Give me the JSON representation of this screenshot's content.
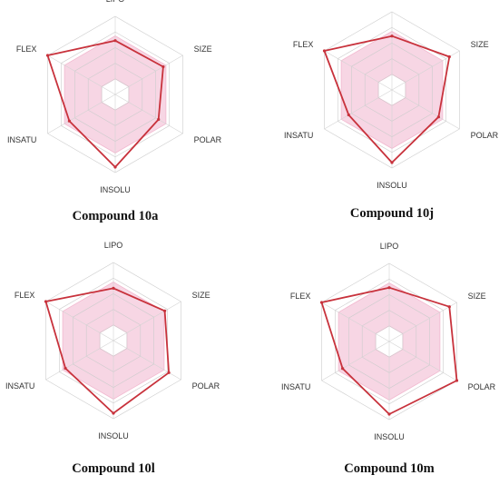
{
  "colors": {
    "data_line": "#c8323c",
    "optimal_fill": "#f7d6e4",
    "optimal_stroke": "#f2b8cf",
    "grid": "#cccccc",
    "axis": "#d4d4d4",
    "background": "#ffffff"
  },
  "chart_data": [
    {
      "type": "radar",
      "title": "Compound 10a",
      "axes": [
        "LIPO",
        "SIZE",
        "POLAR",
        "INSOLU",
        "INSATU",
        "FLEX"
      ],
      "values": [
        0.69,
        0.71,
        0.64,
        0.93,
        0.68,
        1.0
      ],
      "optimal_range": {
        "inner": 0.2,
        "outer": 0.75
      },
      "grid_rings": 5,
      "scale": [
        0,
        1
      ],
      "grid": true
    },
    {
      "type": "radar",
      "title": "Compound 10j",
      "axes": [
        "LIPO",
        "SIZE",
        "POLAR",
        "INSOLU",
        "INSATU",
        "FLEX"
      ],
      "values": [
        0.69,
        0.85,
        0.69,
        0.93,
        0.64,
        1.0
      ],
      "optimal_range": {
        "inner": 0.2,
        "outer": 0.75
      },
      "grid_rings": 5,
      "scale": [
        0,
        1
      ],
      "grid": true
    },
    {
      "type": "radar",
      "title": "Compound 10l",
      "axes": [
        "LIPO",
        "SIZE",
        "POLAR",
        "INSOLU",
        "INSATU",
        "FLEX"
      ],
      "values": [
        0.67,
        0.76,
        0.82,
        0.93,
        0.71,
        1.0
      ],
      "optimal_range": {
        "inner": 0.2,
        "outer": 0.75
      },
      "grid_rings": 5,
      "scale": [
        0,
        1
      ],
      "grid": true
    },
    {
      "type": "radar",
      "title": "Compound 10m",
      "axes": [
        "LIPO",
        "SIZE",
        "POLAR",
        "INSOLU",
        "INSATU",
        "FLEX"
      ],
      "values": [
        0.69,
        0.89,
        1.0,
        0.93,
        0.69,
        1.0
      ],
      "optimal_range": {
        "inner": 0.2,
        "outer": 0.75
      },
      "grid_rings": 5,
      "scale": [
        0,
        1
      ],
      "grid": true
    }
  ]
}
